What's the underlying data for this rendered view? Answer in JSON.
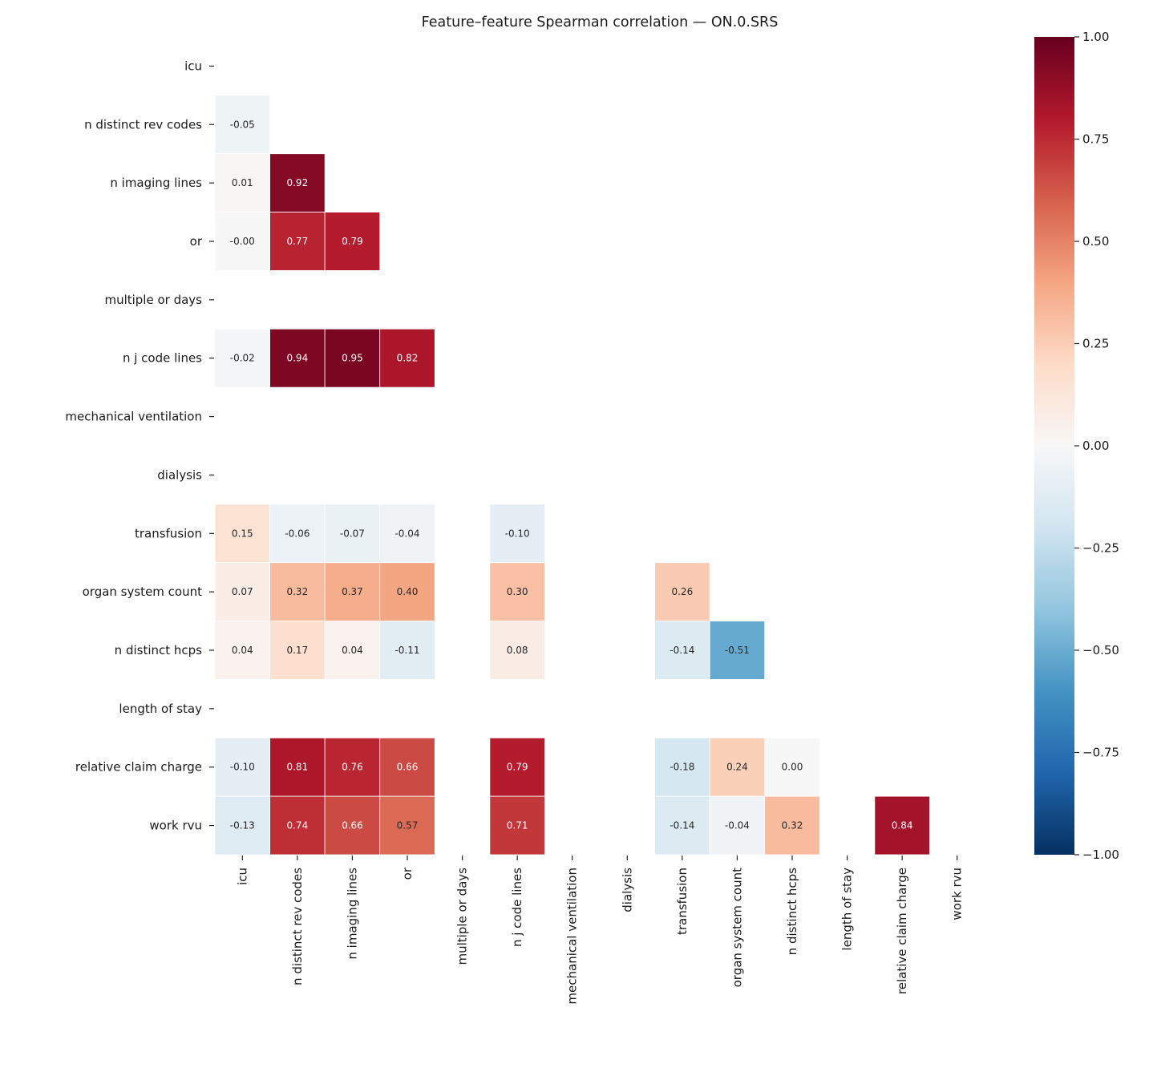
{
  "chart_data": {
    "type": "heatmap",
    "title": "Feature–feature Spearman correlation — ON.0.SRS",
    "labels": [
      "icu",
      "n distinct rev codes",
      "n imaging lines",
      "or",
      "multiple or days",
      "n j code lines",
      "mechanical ventilation",
      "dialysis",
      "transfusion",
      "organ system count",
      "n distinct hcps",
      "length of stay",
      "relative claim charge",
      "work rvu"
    ],
    "matrix_lower_triangle": [
      [],
      [
        -0.05
      ],
      [
        0.01,
        0.92
      ],
      [
        -0.0,
        0.77,
        0.79
      ],
      [
        null,
        null,
        null,
        null
      ],
      [
        -0.02,
        0.94,
        0.95,
        0.82,
        null
      ],
      [
        null,
        null,
        null,
        null,
        null,
        null
      ],
      [
        null,
        null,
        null,
        null,
        null,
        null,
        null
      ],
      [
        0.15,
        -0.06,
        -0.07,
        -0.04,
        null,
        -0.1,
        null,
        null
      ],
      [
        0.07,
        0.32,
        0.37,
        0.4,
        null,
        0.3,
        null,
        null,
        0.26
      ],
      [
        0.04,
        0.17,
        0.04,
        -0.11,
        null,
        0.08,
        null,
        null,
        -0.14,
        -0.51
      ],
      [
        null,
        null,
        null,
        null,
        null,
        null,
        null,
        null,
        null,
        null,
        null
      ],
      [
        -0.1,
        0.81,
        0.76,
        0.66,
        null,
        0.79,
        null,
        null,
        -0.18,
        0.24,
        0.0,
        null
      ],
      [
        -0.13,
        0.74,
        0.66,
        0.57,
        null,
        0.71,
        null,
        null,
        -0.14,
        -0.04,
        0.32,
        null,
        0.84
      ]
    ],
    "colorbar": {
      "range": [
        -1,
        1
      ],
      "ticks": [
        "1.00",
        "0.75",
        "0.50",
        "0.25",
        "0.00",
        "−0.25",
        "−0.50",
        "−0.75",
        "−1.00"
      ],
      "tick_values": [
        1,
        0.75,
        0.5,
        0.25,
        0,
        -0.25,
        -0.5,
        -0.75,
        -1
      ]
    },
    "colormap": [
      "#053061",
      "#2166ac",
      "#4393c3",
      "#92c5de",
      "#d1e5f0",
      "#f7f7f7",
      "#fddbc7",
      "#f4a582",
      "#d6604d",
      "#b2182b",
      "#67001f"
    ],
    "mask": "upper triangle",
    "annotation_format": "0.00"
  }
}
